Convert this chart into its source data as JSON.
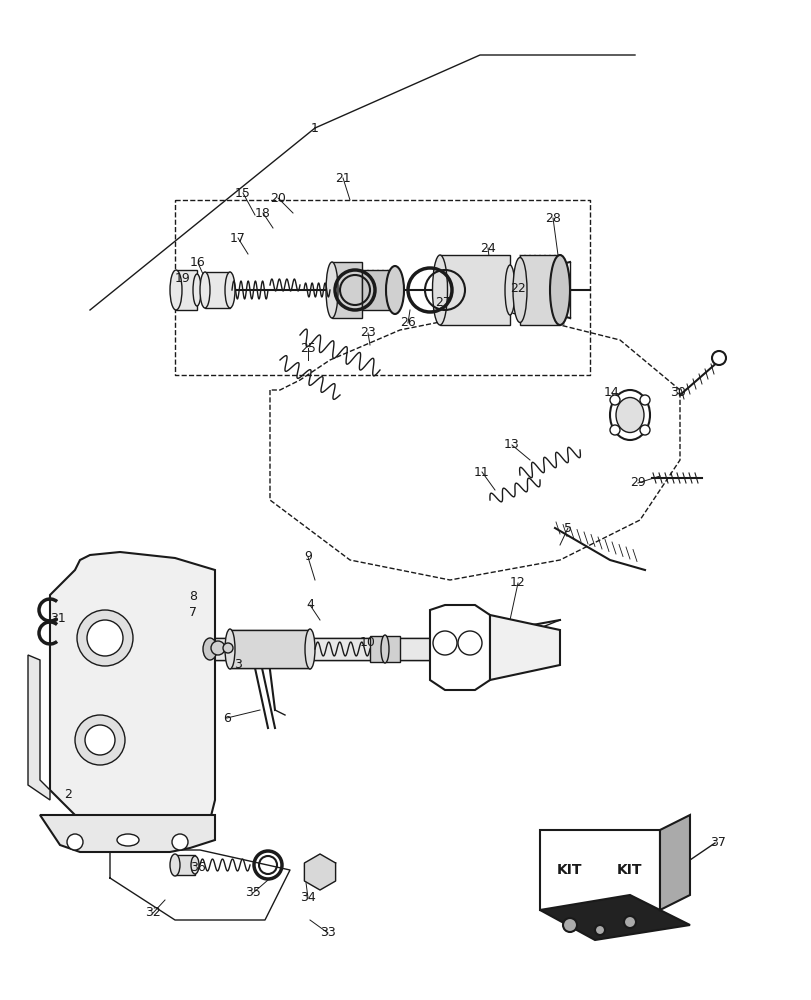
{
  "bg_color": "#ffffff",
  "line_color": "#1a1a1a",
  "lw": 1.0,
  "lw2": 1.5,
  "font_size": 9,
  "figure_width": 8.12,
  "figure_height": 10.0,
  "labels": [
    [
      315,
      128,
      "1"
    ],
    [
      68,
      795,
      "2"
    ],
    [
      238,
      665,
      "3"
    ],
    [
      310,
      605,
      "4"
    ],
    [
      568,
      528,
      "5"
    ],
    [
      227,
      718,
      "6"
    ],
    [
      193,
      612,
      "7"
    ],
    [
      193,
      597,
      "8"
    ],
    [
      308,
      557,
      "9"
    ],
    [
      368,
      643,
      "10"
    ],
    [
      482,
      472,
      "11"
    ],
    [
      518,
      583,
      "12"
    ],
    [
      512,
      445,
      "13"
    ],
    [
      612,
      393,
      "14"
    ],
    [
      243,
      193,
      "15"
    ],
    [
      198,
      263,
      "16"
    ],
    [
      238,
      238,
      "17"
    ],
    [
      263,
      213,
      "18"
    ],
    [
      183,
      278,
      "19"
    ],
    [
      278,
      198,
      "20"
    ],
    [
      343,
      178,
      "21"
    ],
    [
      518,
      288,
      "22"
    ],
    [
      368,
      333,
      "23"
    ],
    [
      488,
      248,
      "24"
    ],
    [
      308,
      348,
      "25"
    ],
    [
      408,
      323,
      "26"
    ],
    [
      443,
      303,
      "27"
    ],
    [
      553,
      218,
      "28"
    ],
    [
      638,
      483,
      "29"
    ],
    [
      678,
      393,
      "30"
    ],
    [
      58,
      618,
      "31"
    ],
    [
      153,
      913,
      "32"
    ],
    [
      328,
      933,
      "33"
    ],
    [
      308,
      898,
      "34"
    ],
    [
      253,
      893,
      "35"
    ],
    [
      198,
      868,
      "36"
    ],
    [
      718,
      843,
      "37"
    ]
  ]
}
